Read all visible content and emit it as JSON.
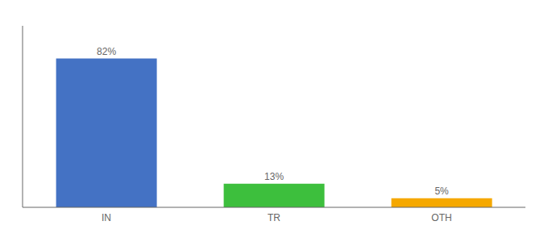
{
  "chart_data": {
    "type": "bar",
    "categories": [
      "IN",
      "TR",
      "OTH"
    ],
    "values": [
      82,
      13,
      5
    ],
    "value_labels": [
      "82%",
      "13%",
      "5%"
    ],
    "colors": [
      "#4472C4",
      "#3DBF3D",
      "#F5A800"
    ],
    "ylim": [
      0,
      100
    ],
    "grid": false,
    "data_labels": true,
    "tick_labels": "x"
  }
}
